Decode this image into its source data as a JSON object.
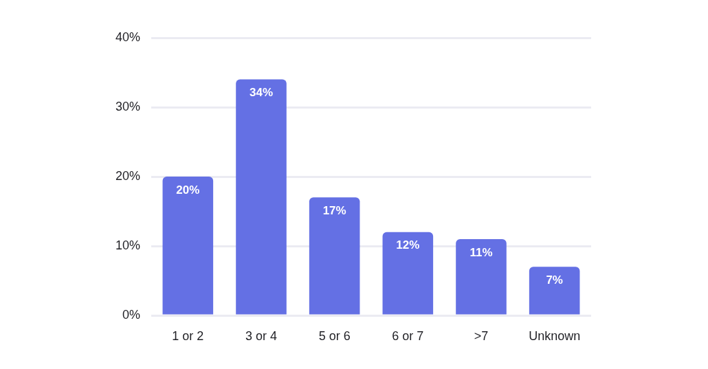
{
  "chart_data": {
    "type": "bar",
    "categories": [
      "1 or 2",
      "3 or 4",
      "5 or 6",
      "6 or 7",
      ">7",
      "Unknown"
    ],
    "values": [
      20,
      34,
      17,
      12,
      11,
      7
    ],
    "color": "#6470e4",
    "value_labels": [
      "20%",
      "34%",
      "17%",
      "12%",
      "11%",
      "7%"
    ],
    "ylim": [
      0,
      40
    ],
    "yticks": [
      {
        "value": 0,
        "label": "0%"
      },
      {
        "value": 10,
        "label": "10%"
      },
      {
        "value": 20,
        "label": "20%"
      },
      {
        "value": 30,
        "label": "30%"
      },
      {
        "value": 40,
        "label": "40%"
      }
    ],
    "grid": "y"
  }
}
